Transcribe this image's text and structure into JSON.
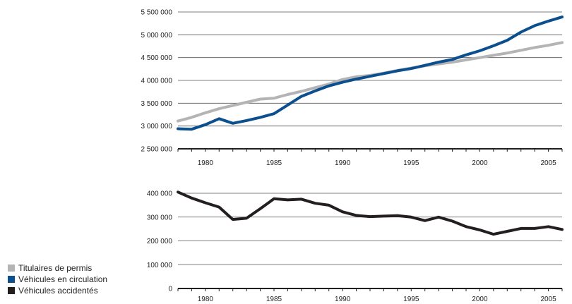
{
  "chart_data": [
    {
      "type": "line",
      "title": "",
      "xlabel": "",
      "ylabel": "",
      "xlim": [
        1978,
        2006
      ],
      "ylim": [
        2500000,
        5500000
      ],
      "y_ticks": [
        2500000,
        3000000,
        3500000,
        4000000,
        4500000,
        5000000,
        5500000
      ],
      "y_tick_labels": [
        "2 500 000",
        "3 000 000",
        "3 500 000",
        "4 000 000",
        "4 500 000",
        "5 000 000",
        "5 500 000"
      ],
      "x_tick_labels": [
        "1980",
        "1985",
        "1990",
        "1995",
        "2000",
        "2005"
      ],
      "x_tick_values": [
        1980,
        1985,
        1990,
        1995,
        2000,
        2005
      ],
      "grid": "horizontal",
      "x": [
        1978,
        1979,
        1980,
        1981,
        1982,
        1983,
        1984,
        1985,
        1986,
        1987,
        1988,
        1989,
        1990,
        1991,
        1992,
        1993,
        1994,
        1995,
        1996,
        1997,
        1998,
        1999,
        2000,
        2001,
        2002,
        2003,
        2004,
        2005,
        2006
      ],
      "series": [
        {
          "name": "Titulaires de permis",
          "color": "#b4b4b4",
          "values": [
            3110000,
            3190000,
            3290000,
            3380000,
            3450000,
            3520000,
            3590000,
            3610000,
            3690000,
            3760000,
            3840000,
            3920000,
            4020000,
            4080000,
            4110000,
            4160000,
            4220000,
            4270000,
            4320000,
            4360000,
            4400000,
            4450000,
            4500000,
            4550000,
            4600000,
            4660000,
            4720000,
            4770000,
            4830000
          ]
        },
        {
          "name": "Véhicules en circulation",
          "color": "#0b4f8f",
          "values": [
            2940000,
            2930000,
            3030000,
            3160000,
            3060000,
            3120000,
            3190000,
            3270000,
            3460000,
            3650000,
            3770000,
            3880000,
            3960000,
            4030000,
            4090000,
            4150000,
            4210000,
            4260000,
            4330000,
            4400000,
            4460000,
            4560000,
            4650000,
            4760000,
            4880000,
            5060000,
            5200000,
            5300000,
            5390000
          ]
        }
      ]
    },
    {
      "type": "line",
      "title": "",
      "xlabel": "",
      "ylabel": "",
      "xlim": [
        1978,
        2006
      ],
      "ylim": [
        0,
        400000
      ],
      "y_ticks": [
        0,
        100000,
        200000,
        300000,
        400000
      ],
      "y_tick_labels": [
        "0",
        "100 000",
        "200 000",
        "300 000",
        "400 000"
      ],
      "x_tick_labels": [
        "1980",
        "1985",
        "1990",
        "1995",
        "2000",
        "2005"
      ],
      "x_tick_values": [
        1980,
        1985,
        1990,
        1995,
        2000,
        2005
      ],
      "grid": "horizontal",
      "x": [
        1978,
        1979,
        1980,
        1981,
        1982,
        1983,
        1984,
        1985,
        1986,
        1987,
        1988,
        1989,
        1990,
        1991,
        1992,
        1993,
        1994,
        1995,
        1996,
        1997,
        1998,
        1999,
        2000,
        2001,
        2002,
        2003,
        2004,
        2005,
        2006
      ],
      "series": [
        {
          "name": "Véhicules accidentés",
          "color": "#231f20",
          "values": [
            405000,
            380000,
            360000,
            342000,
            290000,
            295000,
            335000,
            377000,
            372000,
            375000,
            358000,
            350000,
            322000,
            307000,
            302000,
            304000,
            306000,
            300000,
            285000,
            300000,
            283000,
            260000,
            246000,
            228000,
            240000,
            252000,
            252000,
            260000,
            248000
          ]
        }
      ]
    }
  ],
  "legend": [
    {
      "label": "Titulaires de permis",
      "color": "#b4b4b4"
    },
    {
      "label": "Véhicules en circulation",
      "color": "#0b4f8f"
    },
    {
      "label": "Véhicules accidentés",
      "color": "#231f20"
    }
  ]
}
